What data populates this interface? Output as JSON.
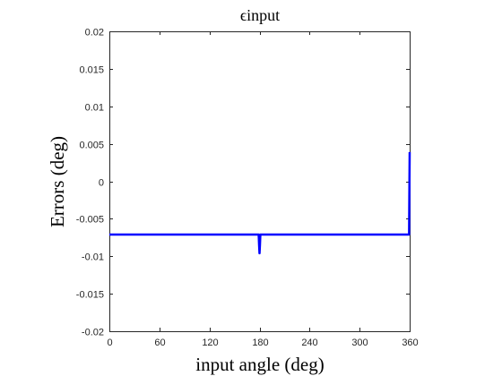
{
  "chart_data": {
    "type": "line",
    "title": "ϵinput",
    "xlabel": "input angle (deg)",
    "ylabel": "Errors (deg)",
    "xlim": [
      0,
      360
    ],
    "ylim": [
      -0.02,
      0.02
    ],
    "xticks": [
      0,
      60,
      120,
      180,
      240,
      300,
      360
    ],
    "xtick_labels": [
      "0",
      "60",
      "120",
      "180",
      "240",
      "300",
      "360"
    ],
    "yticks": [
      0.02,
      0.015,
      0.01,
      0.005,
      0,
      -0.005,
      -0.01,
      -0.015,
      -0.02
    ],
    "ytick_labels": [
      "0.02",
      "0.015",
      "0.01",
      "0.005",
      "0",
      "-0.005",
      "-0.01",
      "-0.015",
      "-0.02"
    ],
    "grid": true,
    "series": [
      {
        "color": "#0000ff",
        "x": [
          0,
          179.0,
          179.5,
          180.0,
          180.5,
          181.0,
          359.0,
          359.3,
          359.6,
          360
        ],
        "y": [
          -0.0071,
          -0.0071,
          -0.0085,
          -0.0096,
          -0.0085,
          -0.0071,
          -0.0071,
          -0.0071,
          -0.002,
          0.0039
        ]
      }
    ]
  }
}
